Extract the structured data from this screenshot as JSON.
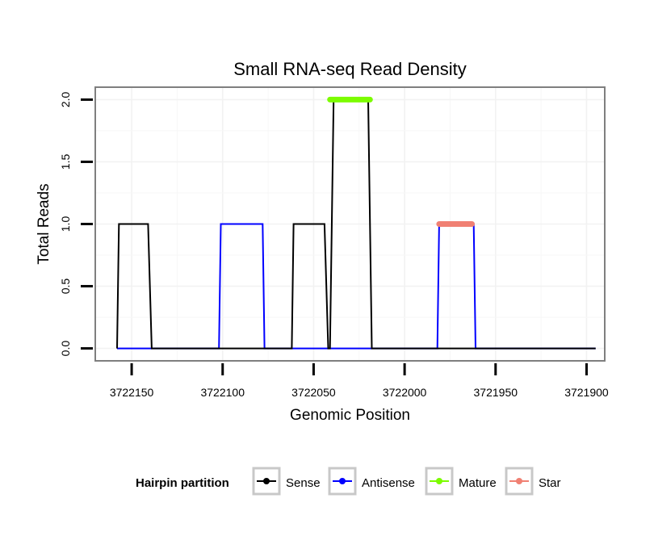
{
  "chart_data": {
    "type": "line",
    "title": "Small RNA-seq Read Density",
    "xlabel": "Genomic Position",
    "ylabel": "Total Reads",
    "xlim": [
      3722170,
      3721890
    ],
    "ylim": [
      -0.1,
      2.1
    ],
    "x_reversed": true,
    "xticks": [
      3722150,
      3722100,
      3722050,
      3722000,
      3721950,
      3721900
    ],
    "xtick_labels": [
      "3722150",
      "3722100",
      "3722050",
      "3722000",
      "3721950",
      "3721900"
    ],
    "yticks": [
      0,
      0.5,
      1,
      1.5,
      2
    ],
    "ytick_labels": [
      "0.0",
      "0.5",
      "1.0",
      "1.5",
      "2.0"
    ],
    "grid": true,
    "legend": {
      "title": "Hairpin partition",
      "position": "bottom",
      "entries": [
        {
          "name": "Sense",
          "color": "#000000"
        },
        {
          "name": "Antisense",
          "color": "#0000ff"
        },
        {
          "name": "Mature",
          "color": "#7cfc00"
        },
        {
          "name": "Star",
          "color": "#f08073"
        }
      ]
    },
    "series": [
      {
        "name": "Antisense",
        "color": "#0000ff",
        "style": "line",
        "x": [
          3722158,
          3722102,
          3722101,
          3722078,
          3722077,
          3722042,
          3722041,
          3722022,
          3722021,
          3721982,
          3721981,
          3721962,
          3721961,
          3721895
        ],
        "y": [
          0,
          0,
          1,
          1,
          0,
          0,
          0,
          0,
          0,
          0,
          1,
          1,
          0,
          0
        ]
      },
      {
        "name": "Sense",
        "color": "#000000",
        "style": "line",
        "x": [
          3722158,
          3722157,
          3722141,
          3722139,
          3722121,
          3722122,
          3722062,
          3722061,
          3722044,
          3722042,
          3722041,
          3722039,
          3722020,
          3722018,
          3721983,
          3721981,
          3721963,
          3721961,
          3721895
        ],
        "y": [
          0,
          1,
          1,
          0,
          0,
          0,
          0,
          1,
          1,
          0,
          0,
          2,
          2,
          0,
          0,
          0,
          0,
          0,
          0
        ]
      },
      {
        "name": "Mature",
        "color": "#7cfc00",
        "style": "thick",
        "x": [
          3722041,
          3722019
        ],
        "y": [
          2,
          2
        ]
      },
      {
        "name": "Star",
        "color": "#f08073",
        "style": "thick",
        "x": [
          3721981,
          3721963
        ],
        "y": [
          1,
          1
        ]
      }
    ]
  }
}
